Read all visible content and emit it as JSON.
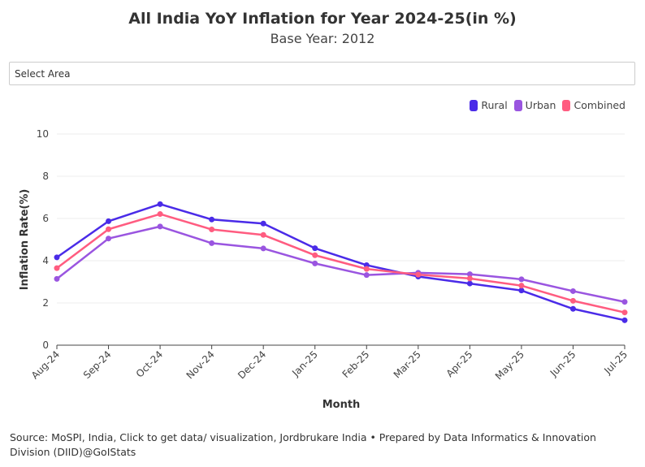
{
  "header": {
    "title": "All India YoY Inflation for Year 2024-25(in %)",
    "subtitle": "Base Year: 2012"
  },
  "filter": {
    "select_label": "Select Area"
  },
  "footer": {
    "source": "Source: MoSPI, India, Click to get data/ visualization, Jordbrukare India • Prepared by Data Informatics & Innovation Division (DIID)@GoIStats"
  },
  "chart_data": {
    "type": "line",
    "title": "All India YoY Inflation for Year 2024-25(in %)",
    "subtitle": "Base Year: 2012",
    "xlabel": "Month",
    "ylabel": "Inflation Rate(%)",
    "ylim": [
      0,
      10
    ],
    "yticks": [
      0,
      2,
      4,
      6,
      8,
      10
    ],
    "grid": true,
    "legend": "top-right",
    "categories": [
      "Aug-24",
      "Sep-24",
      "Oct-24",
      "Nov-24",
      "Dec-24",
      "Jan-25",
      "Feb-25",
      "Mar-25",
      "Apr-25",
      "May-25",
      "Jun-25",
      "Jul-25"
    ],
    "series": [
      {
        "name": "Rural",
        "color": "#4a2be8",
        "values": [
          4.16,
          5.87,
          6.68,
          5.95,
          5.76,
          4.59,
          3.79,
          3.25,
          2.92,
          2.59,
          1.72,
          1.18
        ]
      },
      {
        "name": "Urban",
        "color": "#9a55e0",
        "values": [
          3.14,
          5.05,
          5.62,
          4.83,
          4.58,
          3.87,
          3.32,
          3.43,
          3.36,
          3.12,
          2.56,
          2.05
        ]
      },
      {
        "name": "Combined",
        "color": "#ff5c80",
        "values": [
          3.65,
          5.49,
          6.21,
          5.48,
          5.22,
          4.26,
          3.61,
          3.34,
          3.16,
          2.82,
          2.1,
          1.55
        ]
      }
    ]
  }
}
